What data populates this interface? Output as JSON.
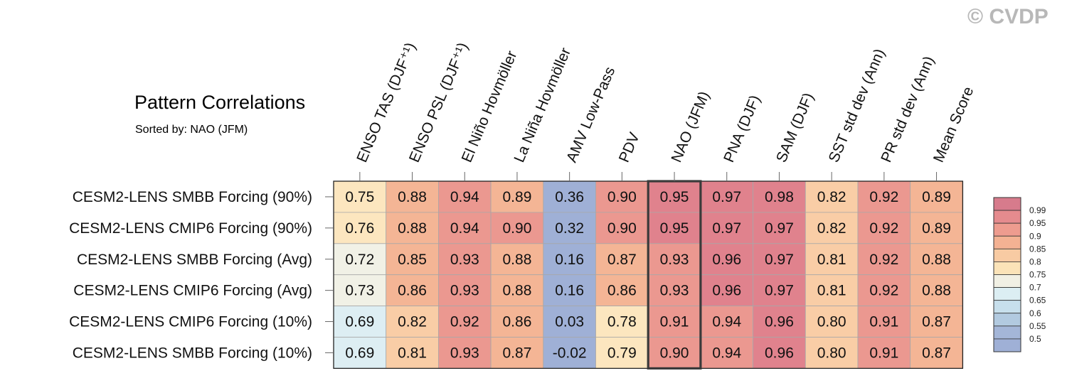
{
  "watermark": "© CVDP",
  "chart_data": {
    "type": "heatmap",
    "title": "Pattern Correlations",
    "subtitle": "Sorted by: NAO (JFM)",
    "columns": [
      "ENSO TAS (DJF⁺¹)",
      "ENSO PSL (DJF⁺¹)",
      "El Niño Hovmöller",
      "La Niña Hovmöller",
      "AMV Low-Pass",
      "PDV",
      "NAO (JFM)",
      "PNA (DJF)",
      "SAM (DJF)",
      "SST std dev (Ann)",
      "PR std dev (Ann)",
      "Mean Score"
    ],
    "rows": [
      "CESM2-LENS SMBB Forcing (90%)",
      "CESM2-LENS CMIP6 Forcing (90%)",
      "CESM2-LENS SMBB Forcing (Avg)",
      "CESM2-LENS CMIP6 Forcing (Avg)",
      "CESM2-LENS CMIP6 Forcing (10%)",
      "CESM2-LENS SMBB Forcing (10%)"
    ],
    "values": [
      [
        "0.75",
        "0.88",
        "0.94",
        "0.89",
        "0.36",
        "0.90",
        "0.95",
        "0.97",
        "0.98",
        "0.82",
        "0.92",
        "0.89"
      ],
      [
        "0.76",
        "0.88",
        "0.94",
        "0.90",
        "0.32",
        "0.90",
        "0.95",
        "0.97",
        "0.97",
        "0.82",
        "0.92",
        "0.89"
      ],
      [
        "0.72",
        "0.85",
        "0.93",
        "0.88",
        "0.16",
        "0.87",
        "0.93",
        "0.96",
        "0.97",
        "0.81",
        "0.92",
        "0.88"
      ],
      [
        "0.73",
        "0.86",
        "0.93",
        "0.88",
        "0.16",
        "0.86",
        "0.93",
        "0.96",
        "0.97",
        "0.81",
        "0.92",
        "0.88"
      ],
      [
        "0.69",
        "0.82",
        "0.92",
        "0.86",
        "0.03",
        "0.78",
        "0.91",
        "0.94",
        "0.96",
        "0.80",
        "0.91",
        "0.87"
      ],
      [
        "0.69",
        "0.81",
        "0.93",
        "0.87",
        "-0.02",
        "0.79",
        "0.90",
        "0.94",
        "0.96",
        "0.80",
        "0.91",
        "0.87"
      ]
    ],
    "highlighted_column": "NAO (JFM)",
    "colorbar": {
      "labels": [
        "0.99",
        "0.95",
        "0.9",
        "0.85",
        "0.8",
        "0.75",
        "0.7",
        "0.65",
        "0.6",
        "0.55",
        "0.5"
      ],
      "colors": [
        "#d77b8c",
        "#e58b8e",
        "#ee9c8f",
        "#f4b293",
        "#f8cba3",
        "#fbe3b8",
        "#f1f0e4",
        "#dceef3",
        "#c7dfec",
        "#b2cae0",
        "#a4b6d8",
        "#9fb0d6"
      ]
    }
  }
}
